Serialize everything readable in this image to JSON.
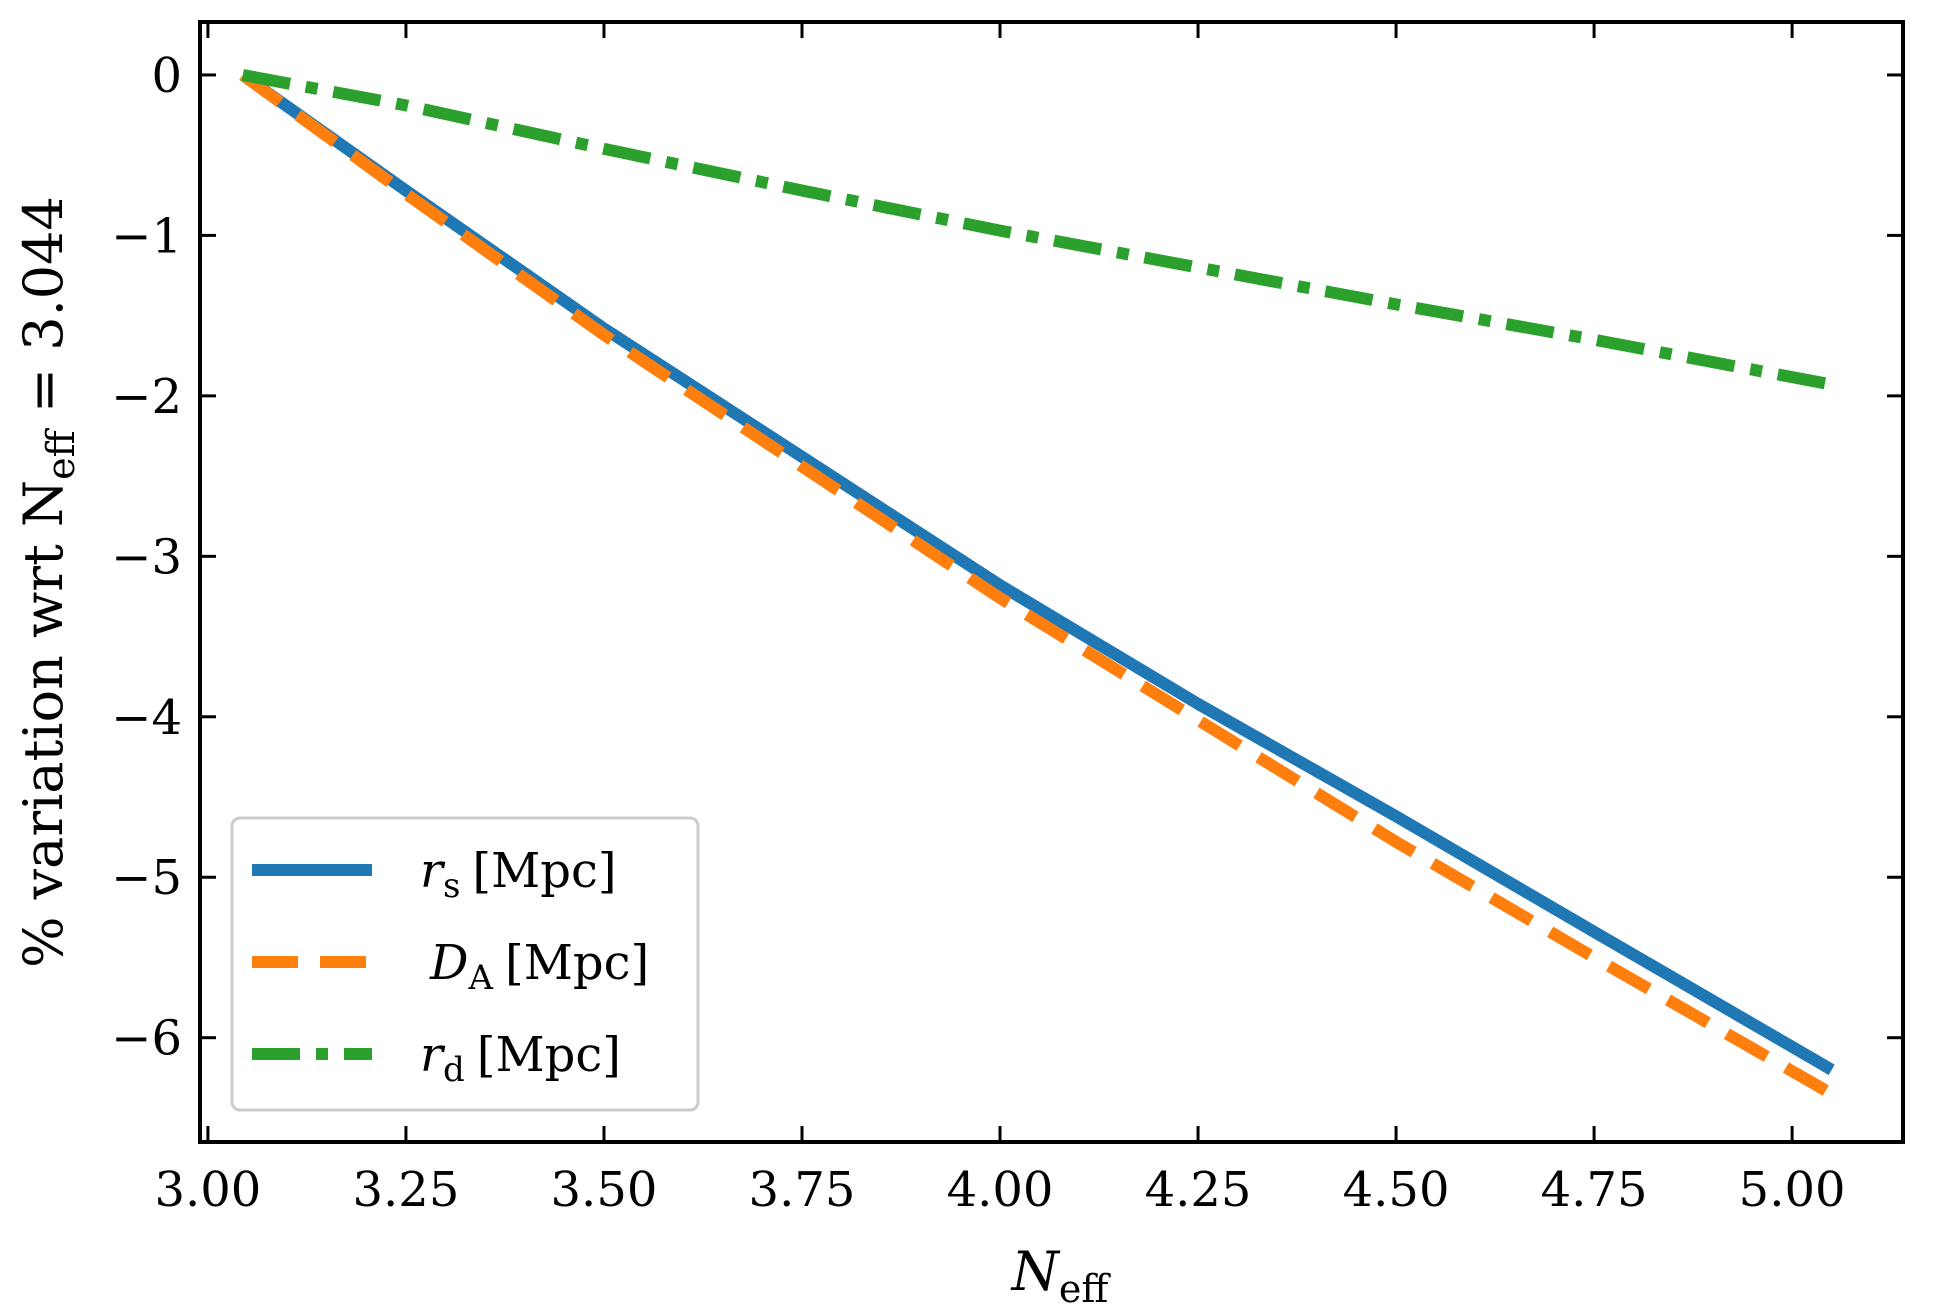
{
  "chart_data": {
    "type": "line",
    "title": "",
    "xlabel": "N",
    "xlabel_sub": "eff",
    "ylabel_parts": {
      "prefix": "% variation wrt N",
      "sub": "eff",
      "suffix": " = 3.044"
    },
    "xlim": [
      2.99,
      5.14
    ],
    "ylim": [
      -6.65,
      0.33
    ],
    "xticks": [
      3.0,
      3.25,
      3.5,
      3.75,
      4.0,
      4.25,
      4.5,
      4.75,
      5.0
    ],
    "xtick_labels": [
      "3.00",
      "3.25",
      "3.50",
      "3.75",
      "4.00",
      "4.25",
      "4.50",
      "4.75",
      "5.00"
    ],
    "yticks": [
      0,
      -1,
      -2,
      -3,
      -4,
      -5,
      -6
    ],
    "ytick_labels": [
      "0",
      "−1",
      "−2",
      "−3",
      "−4",
      "−5",
      "−6"
    ],
    "grid": false,
    "legend_position": "bottom-left",
    "x": [
      3.044,
      3.25,
      3.5,
      3.75,
      4.0,
      4.25,
      4.5,
      4.75,
      5.05
    ],
    "series": [
      {
        "name": "r",
        "sub": "s",
        "unit": "[Mpc]",
        "style": "solid",
        "color": "#1f77b4",
        "values": [
          0,
          -0.72,
          -1.58,
          -2.38,
          -3.18,
          -3.92,
          -4.62,
          -5.34,
          -6.2
        ]
      },
      {
        "name": "D",
        "sub": "A",
        "unit": "[Mpc]",
        "style": "dashed",
        "color": "#ff7f0e",
        "values": [
          0,
          -0.74,
          -1.62,
          -2.44,
          -3.26,
          -4.02,
          -4.78,
          -5.5,
          -6.35
        ]
      },
      {
        "name": "r",
        "sub": "d",
        "unit": "[Mpc]",
        "style": "dashdot",
        "color": "#2ca02c",
        "values": [
          0,
          -0.19,
          -0.46,
          -0.72,
          -0.97,
          -1.2,
          -1.43,
          -1.65,
          -1.93
        ]
      }
    ]
  }
}
